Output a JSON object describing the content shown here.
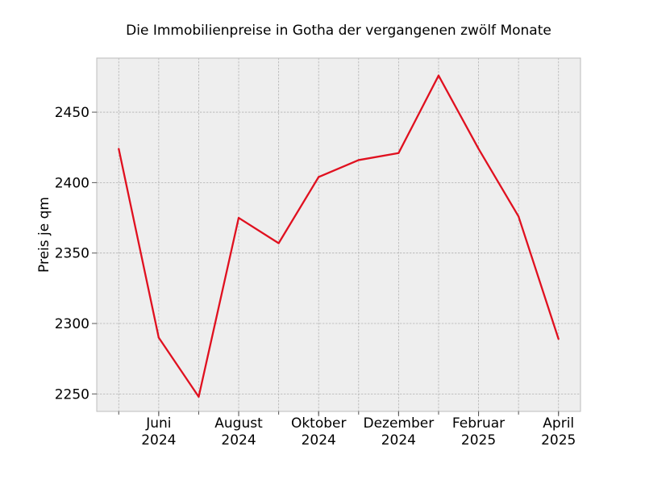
{
  "chart_data": {
    "type": "line",
    "title": "Die Immobilienpreise in Gotha der vergangenen zwölf Monate",
    "xlabel": "",
    "ylabel": "Preis je qm",
    "x": [
      "2024-05",
      "2024-06",
      "2024-07",
      "2024-08",
      "2024-09",
      "2024-10",
      "2024-11",
      "2024-12",
      "2025-01",
      "2025-02",
      "2025-03",
      "2025-04"
    ],
    "x_tick_labels": [
      {
        "month": "2024-06",
        "line1": "Juni",
        "line2": "2024"
      },
      {
        "month": "2024-08",
        "line1": "August",
        "line2": "2024"
      },
      {
        "month": "2024-10",
        "line1": "Oktober",
        "line2": "2024"
      },
      {
        "month": "2024-12",
        "line1": "Dezember",
        "line2": "2024"
      },
      {
        "month": "2025-02",
        "line1": "Februar",
        "line2": "2025"
      },
      {
        "month": "2025-04",
        "line1": "April",
        "line2": "2025"
      }
    ],
    "series": [
      {
        "values": [
          2424,
          2290,
          2248,
          2375,
          2357,
          2404,
          2416,
          2421,
          2476,
          2424,
          2376,
          2289
        ],
        "color": "#e0101f"
      }
    ],
    "y_ticks": [
      2250,
      2300,
      2350,
      2400,
      2450
    ],
    "ylim": [
      2237.6,
      2488.4
    ],
    "grid": true,
    "legend": false,
    "background_color": "#eeeeee"
  }
}
